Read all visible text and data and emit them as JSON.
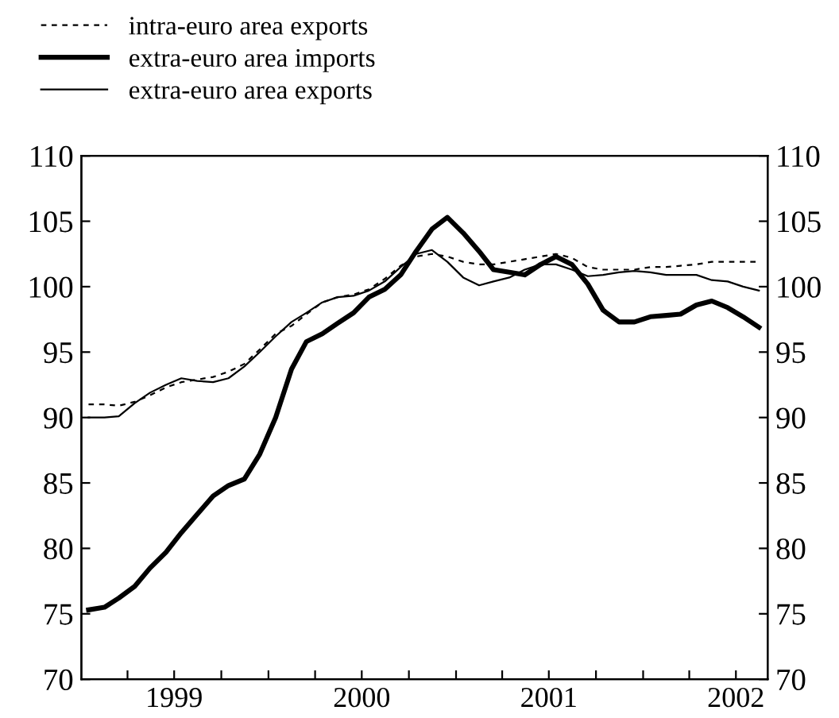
{
  "chart_data": {
    "type": "line",
    "x": [
      "1999-01-15",
      "1999-02-15",
      "1999-03-15",
      "1999-04-15",
      "1999-05-15",
      "1999-06-15",
      "1999-07-15",
      "1999-08-15",
      "1999-09-15",
      "1999-10-15",
      "1999-11-15",
      "1999-12-15",
      "2000-01-15",
      "2000-02-15",
      "2000-03-15",
      "2000-04-15",
      "2000-05-15",
      "2000-06-15",
      "2000-07-15",
      "2000-08-15",
      "2000-09-15",
      "2000-10-15",
      "2000-11-15",
      "2000-12-15",
      "2001-01-15",
      "2001-02-15",
      "2001-03-15",
      "2001-04-15",
      "2001-05-15",
      "2001-06-15",
      "2001-07-15",
      "2001-08-15",
      "2001-09-15",
      "2001-10-15",
      "2001-11-15",
      "2001-12-15",
      "2002-01-15",
      "2002-02-15",
      "2002-03-15",
      "2002-04-15",
      "2002-05-15",
      "2002-06-15",
      "2002-07-15",
      "2002-08-15"
    ],
    "series": [
      {
        "name": "intra-euro area exports",
        "color": "#000000",
        "line_style": "dashed",
        "values": [
          91.0,
          91.0,
          90.9,
          91.2,
          91.7,
          92.3,
          92.7,
          92.9,
          93.1,
          93.5,
          94.1,
          95.2,
          96.4,
          97.0,
          97.9,
          98.8,
          99.2,
          99.4,
          99.8,
          100.6,
          101.6,
          102.3,
          102.5,
          102.3,
          101.9,
          101.7,
          101.7,
          101.9,
          102.1,
          102.3,
          102.5,
          102.2,
          101.5,
          101.3,
          101.3,
          101.3,
          101.5,
          101.5,
          101.6,
          101.7,
          101.9,
          101.9,
          101.9,
          101.9
        ]
      },
      {
        "name": "extra-euro area imports",
        "color": "#000000",
        "line_style": "solid",
        "values": [
          75.3,
          75.5,
          76.2,
          77.1,
          78.5,
          79.7,
          81.2,
          82.6,
          84.0,
          84.8,
          85.3,
          87.2,
          90.0,
          93.7,
          95.8,
          96.4,
          97.2,
          98.0,
          99.2,
          99.8,
          100.9,
          102.7,
          104.4,
          105.3,
          104.1,
          102.7,
          101.3,
          101.1,
          100.9,
          101.7,
          102.3,
          101.7,
          100.2,
          98.2,
          97.3,
          97.3,
          97.7,
          97.8,
          97.9,
          98.6,
          98.9,
          98.4,
          97.7,
          96.9
        ]
      },
      {
        "name": "extra-euro area exports",
        "color": "#000000",
        "line_style": "solid",
        "values": [
          90.0,
          90.0,
          90.1,
          91.1,
          91.9,
          92.5,
          93.0,
          92.8,
          92.7,
          93.0,
          93.9,
          95.0,
          96.2,
          97.3,
          98.0,
          98.8,
          99.2,
          99.3,
          99.7,
          100.4,
          101.5,
          102.5,
          102.8,
          101.9,
          100.7,
          100.1,
          100.4,
          100.7,
          101.3,
          101.7,
          101.7,
          101.3,
          100.8,
          100.9,
          101.1,
          101.2,
          101.1,
          100.9,
          100.9,
          100.9,
          100.5,
          100.4,
          100.0,
          99.7
        ]
      }
    ],
    "xlim": [
      "1999-01-01",
      "2002-09-01"
    ],
    "xticks": [
      {
        "value": "1999-04-01",
        "label": null
      },
      {
        "value": "1999-07-01",
        "label": "1999"
      },
      {
        "value": "1999-10-01",
        "label": null
      },
      {
        "value": "2000-01-01",
        "label": null
      },
      {
        "value": "2000-04-01",
        "label": null
      },
      {
        "value": "2000-07-01",
        "label": "2000"
      },
      {
        "value": "2000-10-01",
        "label": null
      },
      {
        "value": "2001-01-01",
        "label": null
      },
      {
        "value": "2001-04-01",
        "label": null
      },
      {
        "value": "2001-07-01",
        "label": "2001"
      },
      {
        "value": "2001-10-01",
        "label": null
      },
      {
        "value": "2002-01-01",
        "label": null
      },
      {
        "value": "2002-04-01",
        "label": null
      },
      {
        "value": "2002-07-01",
        "label": "2002"
      }
    ],
    "ylim": [
      70,
      110
    ],
    "yticks": [
      70,
      75,
      80,
      85,
      90,
      95,
      100,
      105,
      110
    ],
    "y2lim": [
      70,
      110
    ],
    "y2ticks": [
      70,
      75,
      80,
      85,
      90,
      95,
      100,
      105,
      110
    ],
    "grid": false,
    "legend": "top left",
    "marker": "none"
  }
}
